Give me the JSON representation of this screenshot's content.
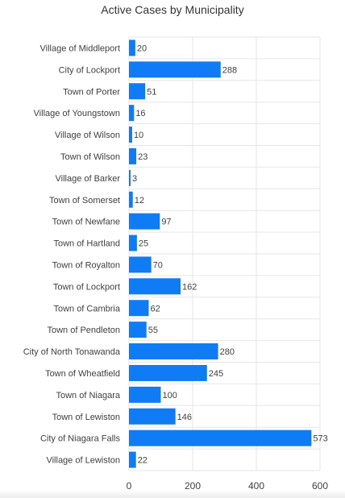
{
  "chart_data": {
    "type": "bar",
    "orientation": "horizontal",
    "title": "Active Cases by Municipality",
    "xlabel": "",
    "ylabel": "",
    "categories": [
      "Village of Middleport",
      "City of Lockport",
      "Town of Porter",
      "Village of Youngstown",
      "Village of Wilson",
      "Town of Wilson",
      "Village of Barker",
      "Town of Somerset",
      "Town of Newfane",
      "Town of Hartland",
      "Town of Royalton",
      "Town of Lockport",
      "Town of Cambria",
      "Town of Pendleton",
      "City of North Tonawanda",
      "Town of Wheatfield",
      "Town of Niagara",
      "Town of Lewiston",
      "City of Niagara Falls",
      "Village of Lewiston"
    ],
    "values": [
      20,
      288,
      51,
      16,
      10,
      23,
      3,
      12,
      97,
      25,
      70,
      162,
      62,
      55,
      280,
      245,
      100,
      146,
      573,
      22
    ],
    "xlim": [
      0,
      600
    ],
    "xticks": [
      0,
      200,
      400,
      600
    ],
    "grid": true,
    "legend": "none",
    "data_labels": true,
    "colors": {
      "bar": "#0f7bf5",
      "grid": "#e6e6e6",
      "text": "#404040"
    }
  }
}
